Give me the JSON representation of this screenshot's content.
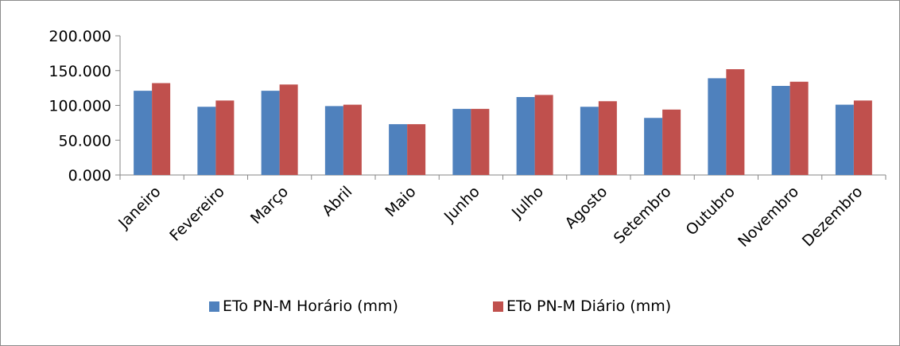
{
  "chart_data": {
    "type": "bar",
    "categories": [
      "Janeiro",
      "Fevereiro",
      "Março",
      "Abril",
      "Maio",
      "Junho",
      "Julho",
      "Agosto",
      "Setembro",
      "Outubro",
      "Novembro",
      "Dezembro"
    ],
    "series": [
      {
        "name": "ETo PN-M Horário (mm)",
        "color": "#4f81bd",
        "values": [
          121,
          98,
          121,
          99,
          73,
          95,
          112,
          98,
          82,
          139,
          128,
          101
        ]
      },
      {
        "name": "ETo PN-M Diário (mm)",
        "color": "#c0504d",
        "values": [
          132,
          107,
          130,
          101,
          73,
          95,
          115,
          106,
          94,
          152,
          134,
          107
        ]
      }
    ],
    "y_ticks": [
      "0.000",
      "50.000",
      "100.000",
      "150.000",
      "200.000"
    ],
    "ylim": [
      0,
      200
    ],
    "grid": false,
    "legend_position": "bottom",
    "title": "",
    "xlabel": "",
    "ylabel": ""
  }
}
